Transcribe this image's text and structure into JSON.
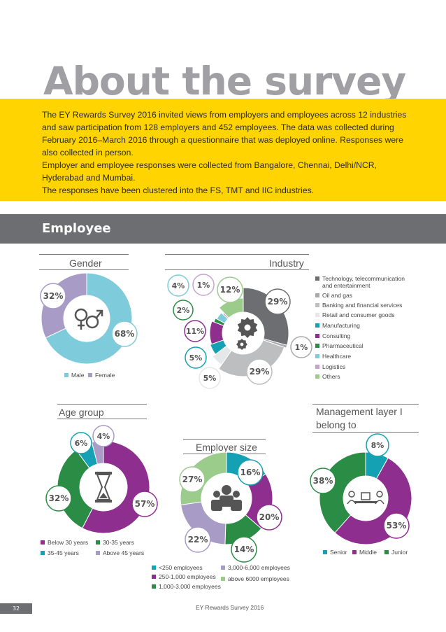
{
  "title": "About the survey",
  "intro": {
    "paragraphs": [
      "The  EY Rewards Survey 2016 invited views from employers and employees across 12 industries and saw participation from 128 employers and 452 employees. The data was collected during February 2016–March 2016 through a questionnaire that was deployed online. Responses were also collected in person.",
      "Employer and employee responses were collected from Bangalore, Chennai, Delhi/NCR, Hyderabad and Mumbai.",
      "The responses have been clustered into the FS, TMT and IIC industries."
    ]
  },
  "section_title": "Employee",
  "colors": {
    "purple": "#8e2e8f",
    "green": "#2a8c45",
    "teal": "#14a1b4",
    "light_blue": "#7ecbdc",
    "lavender": "#a89bc6",
    "light_green": "#9ccc8c",
    "dark_grey": "#6d6e71",
    "mid_grey": "#a7a9ac",
    "light_grey": "#d1d3d4",
    "pink": "#c8a2cd",
    "yellow": "#ffd400"
  },
  "chart_data": [
    {
      "type": "pie",
      "title": "Gender",
      "labels": [
        "Male",
        "Female"
      ],
      "values": [
        68,
        32
      ],
      "colors": [
        "#7ecbdc",
        "#a89bc6"
      ],
      "value_labels": [
        "68%",
        "32%"
      ],
      "icon": "gender-symbols-icon"
    },
    {
      "type": "pie",
      "title": "Industry",
      "labels": [
        "Technology, telecommunication and entertainment",
        "Oil and gas",
        "Banking and financial services",
        "Retail and consumer goods",
        "Manufacturing",
        "Consulting",
        "Pharmaceutical",
        "Healthcare",
        "Logistics",
        "Others"
      ],
      "values": [
        29,
        1,
        29,
        5,
        5,
        11,
        2,
        4,
        1,
        12
      ],
      "colors": [
        "#6d6e71",
        "#a7a9ac",
        "#bcbec0",
        "#e6e7e8",
        "#14a1b4",
        "#8e2e8f",
        "#2a8c45",
        "#7ecbdc",
        "#c8a2cd",
        "#9ccc8c"
      ],
      "value_labels": [
        "29%",
        "1%",
        "29%",
        "5%",
        "5%",
        "11%",
        "2%",
        "4%",
        "1%",
        "12%"
      ],
      "icon": "gears-icon"
    },
    {
      "type": "pie",
      "title": "Age group",
      "labels": [
        "Below 30 years",
        "30-35 years",
        "35-45 years",
        "Above 45 years"
      ],
      "values": [
        57,
        32,
        6,
        4
      ],
      "colors": [
        "#8e2e8f",
        "#2a8c45",
        "#14a1b4",
        "#a89bc6"
      ],
      "value_labels": [
        "57%",
        "32%",
        "6%",
        "4%"
      ],
      "icon": "hourglass-icon"
    },
    {
      "type": "pie",
      "title": "Employer size",
      "labels": [
        "<250 employees",
        "250-1,000 employees",
        "1,000-3,000 employees",
        "3,000-6,000 employees",
        "above 6000 employees"
      ],
      "values": [
        16,
        20,
        14,
        22,
        27
      ],
      "colors": [
        "#14a1b4",
        "#8e2e8f",
        "#2a8c45",
        "#a89bc6",
        "#9ccc8c"
      ],
      "value_labels": [
        "16%",
        "20%",
        "14%",
        "22%",
        "27%"
      ],
      "icon": "people-group-icon"
    },
    {
      "type": "pie",
      "title": "Management layer I belong to",
      "labels": [
        "Senior",
        "Middle",
        "Junior"
      ],
      "values": [
        8,
        53,
        38
      ],
      "colors": [
        "#14a1b4",
        "#8e2e8f",
        "#2a8c45"
      ],
      "value_labels": [
        "8%",
        "53%",
        "38%"
      ],
      "icon": "meeting-icon"
    }
  ],
  "legends": {
    "gender": [
      "Male",
      "Female"
    ],
    "industry": [
      "Technology, telecommunication",
      "and entertainment",
      "Oil and gas",
      "Banking and financial services",
      "Retail and consumer goods",
      "Manufacturing",
      "Consulting",
      "Pharmaceutical",
      "Healthcare",
      "Logistics",
      "Others"
    ],
    "age": [
      "Below 30 years",
      "30-35 years",
      "35-45 years",
      "Above 45 years"
    ],
    "size": [
      "<250 employees",
      "3,000-6,000 employees",
      "250-1,000 employees",
      "above 6000 employees",
      "1,000-3,000 employees"
    ],
    "mgmt": [
      "Senior",
      "Middle",
      "Junior"
    ]
  },
  "footer": {
    "page_number": "32",
    "text": "EY Rewards Survey 2016"
  }
}
